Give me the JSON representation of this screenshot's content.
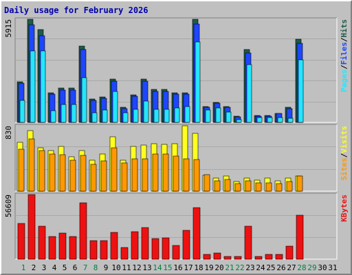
{
  "chart_data": {
    "type": "bar",
    "title": "Daily usage for February 2026",
    "colors": {
      "title": "#0000b0",
      "pages": "#1e5a4a",
      "files": "#1e46ff",
      "hits": "#24e6ff",
      "visits": "#ffff20",
      "sites": "#ff9900",
      "kbytes": "#ee1111",
      "weekend_day": "#008040",
      "weekday": "#000000"
    },
    "days": [
      "1",
      "2",
      "3",
      "4",
      "5",
      "6",
      "7",
      "8",
      "9",
      "10",
      "11",
      "12",
      "13",
      "14",
      "15",
      "16",
      "17",
      "18",
      "19",
      "20",
      "21",
      "22",
      "23",
      "24",
      "25",
      "26",
      "27",
      "28",
      "29",
      "30",
      "31"
    ],
    "weekend_days": [
      1,
      7,
      8,
      14,
      15,
      21,
      22,
      28,
      29
    ],
    "panels": [
      {
        "id": "hits",
        "max_label": "5915",
        "max": 5915,
        "legend": [
          {
            "text": "Hits",
            "color": "#1e5a4a"
          },
          {
            "text": "/",
            "color": "#000000"
          },
          {
            "text": "Files",
            "color": "#1e46ff"
          },
          {
            "text": "/",
            "color": "#000000"
          },
          {
            "text": "Pages",
            "color": "#24e6ff"
          }
        ],
        "series": [
          {
            "name": "Hits",
            "values": [
              2346,
              5915,
              5328,
              1690,
              1972,
              1972,
              4390,
              1338,
              1460,
              2484,
              857,
              1581,
              2484,
              1875,
              1875,
              1703,
              1703,
              5915,
              919,
              1154,
              900,
              362,
              4180,
              389,
              389,
              531,
              860,
              4760,
              0,
              0,
              0
            ]
          },
          {
            "name": "Files",
            "values": [
              2247,
              5583,
              4986,
              1606,
              1873,
              1873,
              4168,
              1273,
              1397,
              2365,
              784,
              1507,
              2365,
              1775,
              1775,
              1604,
              1626,
              5623,
              863,
              1085,
              849,
              332,
              3984,
              361,
              361,
              507,
              808,
              4535,
              0,
              0,
              0
            ]
          },
          {
            "name": "Pages",
            "values": [
              1277,
              4082,
              4082,
              651,
              1018,
              1018,
              2571,
              546,
              699,
              1765,
              542,
              762,
              1212,
              766,
              766,
              841,
              924,
              4600,
              697,
              831,
              586,
              159,
              3302,
              273,
              273,
              273,
              228,
              3606,
              0,
              0,
              0
            ]
          }
        ]
      },
      {
        "id": "visits",
        "max_label": "830",
        "max": 830,
        "legend": [
          {
            "text": "Visits",
            "color": "#ffff20"
          },
          {
            "text": "/",
            "color": "#000000"
          },
          {
            "text": "Sites",
            "color": "#ff9900"
          }
        ],
        "series": [
          {
            "name": "Visits",
            "values": [
              624,
              766,
              548,
              514,
              567,
              440,
              519,
              395,
              472,
              686,
              395,
              572,
              585,
              607,
              596,
              607,
              830,
              730,
              201,
              166,
              192,
              122,
              166,
              136,
              163,
              133,
              163,
              196,
              0,
              0,
              0
            ]
          },
          {
            "name": "Sites",
            "values": [
              533,
              664,
              514,
              476,
              463,
              390,
              453,
              344,
              384,
              548,
              361,
              412,
              412,
              473,
              473,
              446,
              411,
              405,
              214,
              129,
              150,
              94,
              128,
              109,
              106,
              94,
              120,
              188,
              0,
              0,
              0
            ]
          }
        ]
      },
      {
        "id": "kbytes",
        "max_label": "56609",
        "max": 56609,
        "legend": [
          {
            "text": "KBytes",
            "color": "#ee1111"
          }
        ],
        "series": [
          {
            "name": "KBytes",
            "values": [
              31234,
              56609,
              28648,
              19595,
              22640,
              19595,
              49099,
              16110,
              16545,
              23511,
              10016,
              24381,
              27427,
              17850,
              18710,
              11751,
              25251,
              45395,
              3940,
              5246,
              2394,
              2394,
              28648,
              2394,
              4159,
              4159,
              11316,
              38430,
              0,
              0,
              0
            ]
          }
        ]
      }
    ]
  }
}
